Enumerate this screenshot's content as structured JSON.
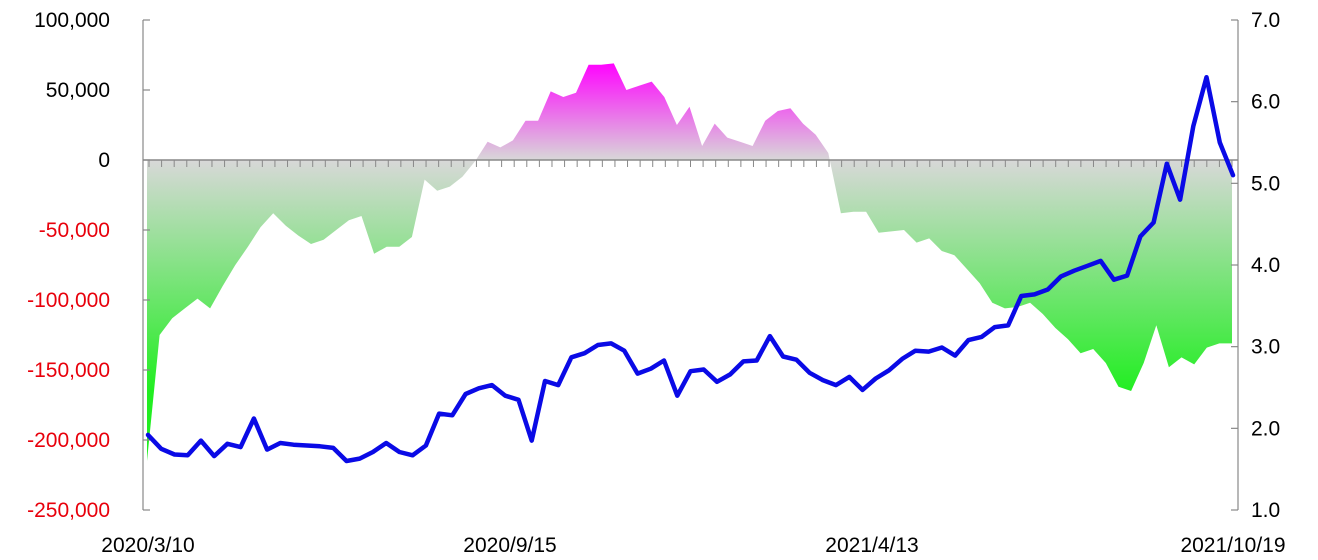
{
  "chart_data": {
    "type": "area+line",
    "x_tick_labels": [
      "2020/3/10",
      "2020/9/15",
      "2021/4/13",
      "2021/10/19"
    ],
    "left_axis": {
      "ylim": [
        -250000,
        100000
      ],
      "tick_values": [
        100000,
        50000,
        0,
        -50000,
        -100000,
        -150000,
        -200000,
        -250000
      ],
      "tick_labels": [
        "100,000",
        "50,000",
        "0",
        "-50,000",
        "-100,000",
        "-150,000",
        "-200,000",
        "-250,000"
      ],
      "positive_label_color": "#000000",
      "negative_label_color": "#e8000b"
    },
    "right_axis": {
      "ylim": [
        1.0,
        7.0
      ],
      "tick_values": [
        7.0,
        6.0,
        5.0,
        4.0,
        3.0,
        2.0,
        1.0
      ],
      "tick_labels": [
        "7.0",
        "6.0",
        "5.0",
        "4.0",
        "3.0",
        "2.0",
        "1.0"
      ]
    },
    "series": [
      {
        "type": "area",
        "axis": "left",
        "positive_color": "#ff00ff",
        "negative_color": "#22ee22",
        "values": [
          -215000,
          -125000,
          -113000,
          -106000,
          -99000,
          -106000,
          -90000,
          -75000,
          -62000,
          -48000,
          -38000,
          -47000,
          -54000,
          -60000,
          -57000,
          -50000,
          -43000,
          -40000,
          -67000,
          -62000,
          -62000,
          -55000,
          -14000,
          -22000,
          -19000,
          -12000,
          -1000,
          13000,
          9000,
          14000,
          28000,
          28000,
          49000,
          45000,
          48000,
          68000,
          68000,
          69000,
          50000,
          53000,
          56000,
          45000,
          25000,
          38000,
          10000,
          26000,
          16000,
          13000,
          10000,
          28000,
          35000,
          37000,
          26000,
          18000,
          5000,
          -38000,
          -37000,
          -37000,
          -52000,
          -51000,
          -50000,
          -59000,
          -56000,
          -65000,
          -68000,
          -78000,
          -88000,
          -102000,
          -106000,
          -105000,
          -102000,
          -110000,
          -120000,
          -128000,
          -138000,
          -135000,
          -145000,
          -162000,
          -165000,
          -145000,
          -118000,
          -148000,
          -141000,
          -146000,
          -134000,
          -131000,
          -131000
        ]
      },
      {
        "type": "line",
        "axis": "right",
        "color": "#0a0ae6",
        "values": [
          1.92,
          1.75,
          1.68,
          1.67,
          1.85,
          1.66,
          1.81,
          1.77,
          2.12,
          1.74,
          1.82,
          1.8,
          1.79,
          1.78,
          1.76,
          1.6,
          1.63,
          1.71,
          1.82,
          1.71,
          1.67,
          1.79,
          2.18,
          2.16,
          2.42,
          2.49,
          2.53,
          2.4,
          2.35,
          1.85,
          2.58,
          2.53,
          2.87,
          2.92,
          3.02,
          3.04,
          2.95,
          2.67,
          2.73,
          2.83,
          2.4,
          2.7,
          2.72,
          2.57,
          2.66,
          2.82,
          2.83,
          3.13,
          2.88,
          2.84,
          2.68,
          2.59,
          2.53,
          2.63,
          2.47,
          2.61,
          2.71,
          2.85,
          2.95,
          2.94,
          2.99,
          2.89,
          3.08,
          3.12,
          3.24,
          3.26,
          3.62,
          3.64,
          3.7,
          3.86,
          3.93,
          3.99,
          4.05,
          3.82,
          3.87,
          4.35,
          4.52,
          5.24,
          4.8,
          5.7,
          6.3,
          5.5,
          5.1
        ]
      }
    ]
  }
}
